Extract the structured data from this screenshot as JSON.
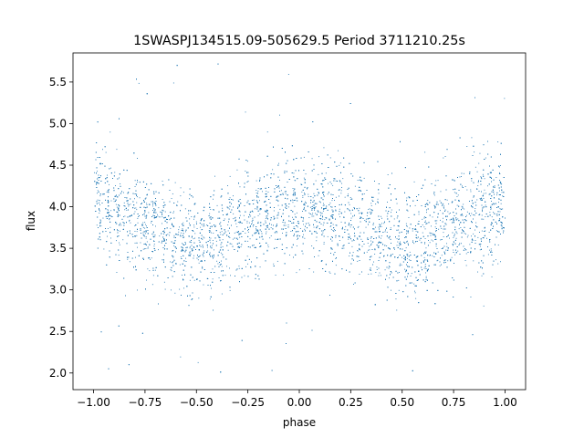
{
  "chart_data": {
    "type": "scatter",
    "title": "1SWASPJ134515.09-505629.5 Period 3711210.25s",
    "xlabel": "phase",
    "ylabel": "flux",
    "xlim": [
      -1.1,
      1.1
    ],
    "ylim": [
      1.8,
      5.85
    ],
    "xticks": [
      -1.0,
      -0.75,
      -0.5,
      -0.25,
      0.0,
      0.25,
      0.5,
      0.75,
      1.0
    ],
    "xtick_labels": [
      "−1.00",
      "−0.75",
      "−0.50",
      "−0.25",
      "0.00",
      "0.25",
      "0.50",
      "0.75",
      "1.00"
    ],
    "yticks": [
      2.0,
      2.5,
      3.0,
      3.5,
      4.0,
      4.5,
      5.0,
      5.5
    ],
    "ytick_labels": [
      "2.0",
      "2.5",
      "3.0",
      "3.5",
      "4.0",
      "4.5",
      "5.0",
      "5.5"
    ],
    "grid": false,
    "marker_color": "#1f77b4",
    "series": [
      {
        "description_of_distribution": "dense phase-folded light curve mirrored about phase 0",
        "x_range": [
          -1.0,
          1.0
        ],
        "core_flux_range": [
          3.0,
          4.7
        ],
        "outlier_flux_range": [
          1.95,
          5.75
        ],
        "mean_flux_profile": {
          "phase": [
            0.0,
            0.1,
            0.2,
            0.3,
            0.4,
            0.5,
            0.6,
            0.7,
            0.8,
            0.9,
            1.0
          ],
          "flux": [
            4.0,
            3.95,
            3.85,
            3.75,
            3.65,
            3.55,
            3.6,
            3.75,
            3.85,
            3.95,
            4.05
          ]
        }
      }
    ]
  }
}
